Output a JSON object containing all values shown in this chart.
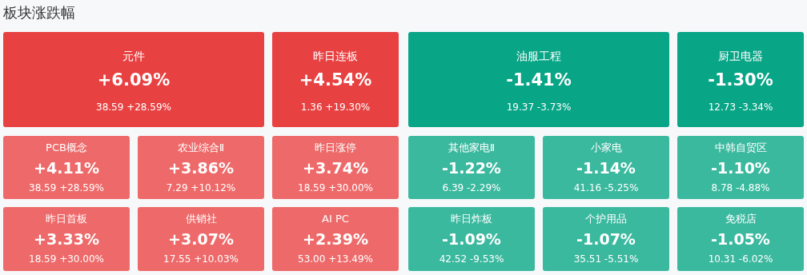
{
  "chart_data": {
    "type": "other",
    "title": "板块涨跌幅",
    "categories": [
      "元件",
      "昨日连板",
      "油服工程",
      "厨卫电器",
      "PCB概念",
      "农业综合Ⅱ",
      "昨日涨停",
      "其他家电Ⅱ",
      "小家电",
      "中韩自贸区",
      "昨日首板",
      "供销社",
      "AI PC",
      "昨日炸板",
      "个护用品",
      "免税店"
    ],
    "values": [
      6.09,
      4.54,
      -1.41,
      -1.3,
      4.11,
      3.86,
      3.74,
      -1.22,
      -1.14,
      -1.1,
      3.33,
      3.07,
      2.39,
      -1.09,
      -1.07,
      -1.05
    ],
    "value_labels": [
      "+6.09%",
      "+4.54%",
      "-1.41%",
      "-1.30%",
      "+4.11%",
      "+3.86%",
      "+3.74%",
      "-1.22%",
      "-1.14%",
      "-1.10%",
      "+3.33%",
      "+3.07%",
      "+2.39%",
      "-1.09%",
      "-1.07%",
      "-1.05%"
    ],
    "colors": [
      "#e84142",
      "#e84142",
      "#08a586",
      "#08a586",
      "#ee6a6a",
      "#ee6a6a",
      "#ee6a6a",
      "#3bb99f",
      "#3bb99f",
      "#3bb99f",
      "#ee6a6a",
      "#ee6a6a",
      "#ee6a6a",
      "#3bb99f",
      "#3bb99f",
      "#3bb99f"
    ],
    "annotations": [
      "38.59 +28.59%",
      "1.36 +19.30%",
      "19.37 -3.73%",
      "12.73 -3.34%",
      "38.59 +28.59%",
      "7.29 +10.12%",
      "18.59 +30.00%",
      "6.39 -2.29%",
      "41.16 -5.25%",
      "8.78 -4.88%",
      "18.59 +30.00%",
      "17.55 +10.03%",
      "53.00 +13.49%",
      "42.52 -9.53%",
      "35.51 -5.51%",
      "10.31 -6.02%"
    ]
  }
}
